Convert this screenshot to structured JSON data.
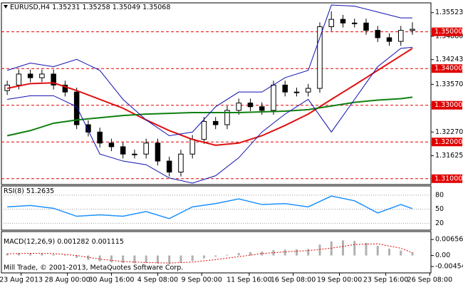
{
  "chart_data": {
    "type": "candlestick",
    "symbol": "EURUSD,H4",
    "quote": [
      1.35231,
      1.35258,
      1.35049,
      1.35068
    ],
    "xlim": [
      -0.5,
      36.6
    ],
    "xticks": [
      {
        "value": 1.2,
        "label": "23 Aug 2013"
      },
      {
        "value": 5.2,
        "label": "28 Aug 00:00"
      },
      {
        "value": 9,
        "label": "30 Aug 16:00"
      },
      {
        "value": 13,
        "label": "4 Sep 08:00"
      },
      {
        "value": 16.8,
        "label": "9 Sep 00:00"
      },
      {
        "value": 20.9,
        "label": "11 Sep 16:00"
      },
      {
        "value": 24.7,
        "label": "16 Sep 08:00"
      },
      {
        "value": 28.7,
        "label": "19 Sep 00:00"
      },
      {
        "value": 32.7,
        "label": "23 Sep 16:00"
      },
      {
        "value": 36.5,
        "label": "26 Sep 08:00"
      }
    ],
    "open": [
      1.334,
      1.3355,
      1.3385,
      1.3375,
      1.3385,
      1.3355,
      1.3336,
      1.3247,
      1.3227,
      1.3197,
      1.3187,
      1.3167,
      1.3167,
      1.3197,
      1.3148,
      1.3118,
      1.3167,
      1.3207,
      1.3256,
      1.3247,
      1.3286,
      1.3306,
      1.3296,
      1.3286,
      1.3355,
      1.3336,
      1.3336,
      1.3346,
      1.3514,
      1.3534,
      1.3524,
      1.3524,
      1.3504,
      1.3484,
      1.3474,
      1.3504
    ],
    "high": [
      1.3367,
      1.3397,
      1.3397,
      1.3397,
      1.3397,
      1.3367,
      1.3348,
      1.3259,
      1.3239,
      1.3209,
      1.3199,
      1.3179,
      1.3209,
      1.3209,
      1.316,
      1.3179,
      1.3219,
      1.3268,
      1.3268,
      1.3298,
      1.3318,
      1.3318,
      1.3308,
      1.3367,
      1.3367,
      1.3348,
      1.3358,
      1.3526,
      1.3556,
      1.3546,
      1.3536,
      1.3536,
      1.3516,
      1.3496,
      1.3516,
      1.3526
    ],
    "low": [
      1.3328,
      1.3343,
      1.3363,
      1.3363,
      1.3343,
      1.3324,
      1.3235,
      1.3215,
      1.3185,
      1.3175,
      1.3155,
      1.3155,
      1.3155,
      1.3136,
      1.3106,
      1.3106,
      1.3155,
      1.3195,
      1.3235,
      1.3235,
      1.3274,
      1.3284,
      1.3274,
      1.3274,
      1.3324,
      1.3324,
      1.3324,
      1.3334,
      1.3502,
      1.3512,
      1.3512,
      1.3492,
      1.3472,
      1.3462,
      1.3462,
      1.3492
    ],
    "close": [
      1.3355,
      1.3385,
      1.3375,
      1.3385,
      1.3355,
      1.3336,
      1.3247,
      1.3227,
      1.3197,
      1.3187,
      1.3167,
      1.3167,
      1.3197,
      1.3148,
      1.3118,
      1.3167,
      1.3207,
      1.3256,
      1.3247,
      1.3286,
      1.3306,
      1.3296,
      1.3286,
      1.3355,
      1.3336,
      1.3336,
      1.3346,
      1.3514,
      1.3534,
      1.3524,
      1.3524,
      1.3504,
      1.3484,
      1.3474,
      1.3504,
      1.3507
    ],
    "candle_color": "#000000",
    "ylim": [
      1.3086,
      1.3577
    ],
    "yticks": [
      1.35523,
      {
        "value": 1.3488,
        "label": "1.34880"
      },
      1.34243,
      {
        "value": 1.3357,
        "label": "1.33570"
      },
      {
        "value": 1.3227,
        "label": "1.32270"
      },
      1.31625
    ],
    "levels": [
      {
        "value": 1.35,
        "label": "1.35000"
      },
      {
        "value": 1.34,
        "label": "1.34000"
      },
      {
        "value": 1.33,
        "label": "1.33000"
      },
      {
        "value": 1.32,
        "label": "1.32000"
      },
      {
        "value": 1.31,
        "label": "1.31000"
      }
    ],
    "level_color": "#e00000",
    "line_x": [
      0,
      2,
      4,
      6,
      8,
      10,
      12,
      14,
      16,
      18,
      20,
      22,
      24,
      26,
      28,
      30,
      32,
      34,
      35
    ],
    "lines": [
      {
        "color": "#e01010",
        "width": 2,
        "values": [
          1.3346,
          1.3359,
          1.3361,
          1.334,
          1.3316,
          1.3292,
          1.326,
          1.3231,
          1.3207,
          1.3191,
          1.3197,
          1.3217,
          1.3245,
          1.3276,
          1.3316,
          1.3355,
          1.3395,
          1.3435,
          1.3455
        ]
      },
      {
        "color": "#108010",
        "width": 2,
        "values": [
          1.3217,
          1.3231,
          1.3251,
          1.326,
          1.3266,
          1.3272,
          1.3276,
          1.3278,
          1.328,
          1.328,
          1.328,
          1.3282,
          1.3284,
          1.3288,
          1.3298,
          1.3308,
          1.3314,
          1.3318,
          1.3322
        ]
      },
      {
        "color": "#1010b0",
        "width": 1,
        "values": [
          1.3395,
          1.3415,
          1.3405,
          1.3425,
          1.3395,
          1.3316,
          1.326,
          1.3217,
          1.3227,
          1.3296,
          1.3336,
          1.3336,
          1.3375,
          1.3395,
          1.3573,
          1.357,
          1.3554,
          1.3538,
          1.3538
        ]
      },
      {
        "color": "#1010b0",
        "width": 1,
        "values": [
          1.3316,
          1.3326,
          1.3326,
          1.3296,
          1.3167,
          1.3148,
          1.3138,
          1.3102,
          1.3088,
          1.3108,
          1.3157,
          1.3227,
          1.3276,
          1.3316,
          1.3227,
          1.3316,
          1.3405,
          1.3455,
          1.3458
        ]
      }
    ],
    "rsi": {
      "label": "RSI(8)",
      "color": "#1e90ff",
      "ylim": [
        7,
        98
      ],
      "yticks": [
        80,
        50,
        20
      ],
      "values": [
        55,
        58,
        52,
        35,
        38,
        35,
        45,
        30,
        55,
        62,
        72,
        60,
        62,
        55,
        78,
        68,
        42,
        60,
        51.2635
      ]
    },
    "macd": {
      "label": "MACD(12,26,9)",
      "hist_color": "#b0b0b0",
      "signal_color": "#e00000",
      "ylim": [
        -0.00687,
        0.00955
      ],
      "yticks": [
        0.006568,
        {
          "value": 0,
          "label": "0.00"
        },
        -0.004546
      ],
      "hist": [
        0.0008,
        0.001,
        0.0009,
        0.0008,
        0.0005,
        0.0002,
        -0.001,
        -0.0018,
        -0.0024,
        -0.0028,
        -0.0031,
        -0.0032,
        -0.003,
        -0.0033,
        -0.0035,
        -0.003,
        -0.0022,
        -0.0012,
        -0.0005,
        0.0003,
        0.001,
        0.0014,
        0.0016,
        0.0022,
        0.0024,
        0.0025,
        0.0027,
        0.0045,
        0.0058,
        0.0062,
        0.006,
        0.0052,
        0.004,
        0.0028,
        0.002,
        0.001282
      ],
      "signal": [
        0.0007,
        0.0009,
        0.0008,
        0.0,
        -0.0015,
        -0.0025,
        -0.0029,
        -0.0031,
        -0.0027,
        -0.0017,
        -0.0005,
        0.0008,
        0.0015,
        0.002,
        0.003,
        0.0045,
        0.0048,
        0.003,
        0.001115
      ]
    },
    "copyright": "Mill Trade, © 2001-2013, MetaQuotes Software Corp."
  }
}
